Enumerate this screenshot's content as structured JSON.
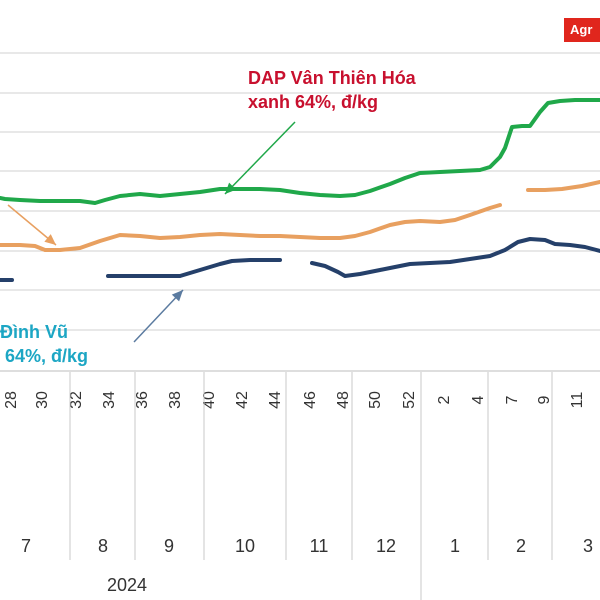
{
  "badge": "Agr",
  "annotations": {
    "green_line1": "DAP Vân  Thiên Hóa",
    "green_line2": "xanh 64%, đ/kg",
    "blue_line1": "Đình Vũ",
    "blue_line2": " 64%, đ/kg"
  },
  "colors": {
    "green": "#20a84a",
    "orange": "#e8a060",
    "navy": "#25406a",
    "grid": "#d0d0d0",
    "annotation_red": "#c8102e",
    "annotation_blue": "#1ca6c4",
    "badge": "#e0261d"
  },
  "chart_data": {
    "type": "line",
    "x_ticks": [
      "28",
      "30",
      "32",
      "34",
      "36",
      "38",
      "40",
      "42",
      "44",
      "46",
      "48",
      "50",
      "52",
      "2",
      "4",
      "7",
      "9",
      "11"
    ],
    "month_labels": [
      "7",
      "8",
      "9",
      "10",
      "11",
      "12",
      "1",
      "2",
      "3"
    ],
    "year_labels": [
      "2024"
    ],
    "grid": true,
    "series": [
      {
        "name": "DAP Vân  Thiên Hóa xanh 64%, đ/kg",
        "color": "#20a84a",
        "points": [
          [
            0,
            198
          ],
          [
            5,
            199
          ],
          [
            20,
            200
          ],
          [
            40,
            201
          ],
          [
            60,
            201
          ],
          [
            80,
            201
          ],
          [
            95,
            203
          ],
          [
            105,
            200
          ],
          [
            120,
            196
          ],
          [
            140,
            194
          ],
          [
            160,
            196
          ],
          [
            180,
            194
          ],
          [
            200,
            192
          ],
          [
            220,
            189
          ],
          [
            240,
            189
          ],
          [
            260,
            189
          ],
          [
            280,
            190
          ],
          [
            300,
            193
          ],
          [
            320,
            195
          ],
          [
            340,
            196
          ],
          [
            355,
            195
          ],
          [
            370,
            191
          ],
          [
            390,
            184
          ],
          [
            405,
            178
          ],
          [
            420,
            173
          ],
          [
            440,
            172
          ],
          [
            460,
            171
          ],
          [
            480,
            170
          ],
          [
            490,
            167
          ],
          [
            500,
            157
          ],
          [
            505,
            148
          ],
          [
            512,
            127
          ],
          [
            522,
            126
          ],
          [
            530,
            126
          ],
          [
            540,
            112
          ],
          [
            548,
            103
          ],
          [
            560,
            101
          ],
          [
            575,
            100
          ],
          [
            600,
            100
          ]
        ]
      },
      {
        "name": "",
        "color": "#e8a060",
        "segments": [
          [
            [
              0,
              245
            ],
            [
              20,
              245
            ],
            [
              35,
              246
            ],
            [
              45,
              250
            ],
            [
              60,
              250
            ],
            [
              80,
              248
            ],
            [
              100,
              241
            ],
            [
              120,
              235
            ],
            [
              140,
              236
            ],
            [
              160,
              238
            ],
            [
              180,
              237
            ],
            [
              200,
              235
            ],
            [
              220,
              234
            ],
            [
              240,
              235
            ],
            [
              260,
              236
            ],
            [
              280,
              236
            ],
            [
              300,
              237
            ],
            [
              320,
              238
            ],
            [
              340,
              238
            ],
            [
              355,
              236
            ],
            [
              370,
              232
            ],
            [
              390,
              225
            ],
            [
              405,
              222
            ],
            [
              420,
              221
            ],
            [
              440,
              222
            ],
            [
              455,
              220
            ],
            [
              470,
              215
            ],
            [
              490,
              208
            ],
            [
              500,
              205
            ]
          ],
          [
            [
              528,
              190
            ],
            [
              545,
              190
            ],
            [
              562,
              189
            ],
            [
              582,
              186
            ],
            [
              600,
              182
            ]
          ]
        ]
      },
      {
        "name": "Đình Vũ 64%, đ/kg",
        "color": "#25406a",
        "segments": [
          [
            [
              0,
              280
            ],
            [
              12,
              280
            ]
          ],
          [
            [
              108,
              276
            ],
            [
              145,
              276
            ],
            [
              180,
              276
            ],
            [
              200,
              270
            ],
            [
              220,
              264
            ],
            [
              232,
              261
            ],
            [
              250,
              260
            ],
            [
              265,
              260
            ],
            [
              280,
              260
            ]
          ],
          [
            [
              312,
              263
            ],
            [
              325,
              266
            ],
            [
              338,
              272
            ],
            [
              345,
              276
            ],
            [
              360,
              274
            ],
            [
              380,
              270
            ],
            [
              395,
              267
            ],
            [
              410,
              264
            ],
            [
              430,
              263
            ],
            [
              450,
              262
            ],
            [
              470,
              259
            ],
            [
              490,
              256
            ],
            [
              505,
              250
            ],
            [
              518,
              242
            ],
            [
              530,
              239
            ],
            [
              545,
              240
            ],
            [
              555,
              244
            ],
            [
              570,
              245
            ],
            [
              585,
              247
            ],
            [
              600,
              251
            ]
          ]
        ]
      }
    ]
  }
}
